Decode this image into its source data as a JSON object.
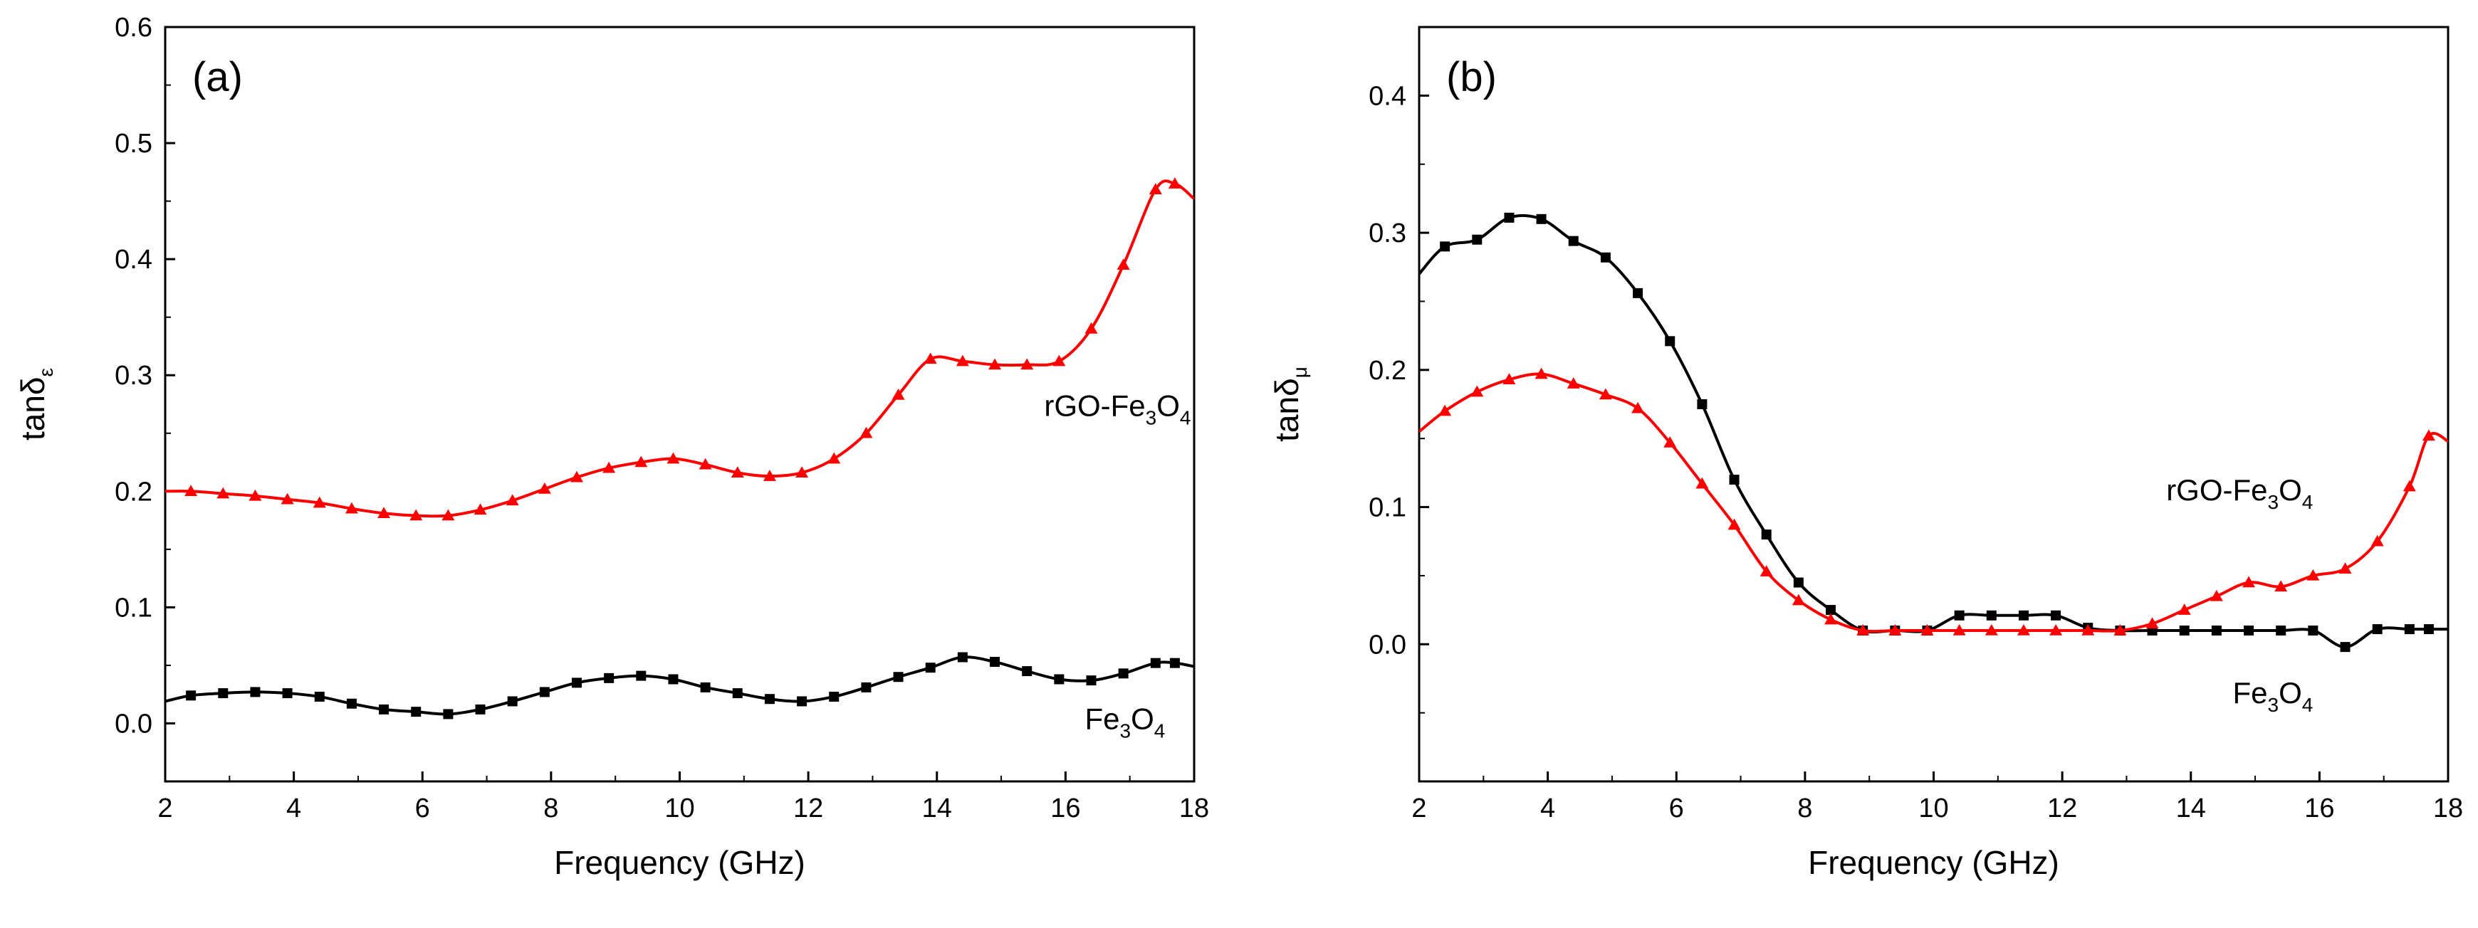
{
  "chart_data": [
    {
      "type": "line",
      "panel_label": "(a)",
      "xlabel": "Frequency (GHz)",
      "ylabel": "tanδ",
      "ylabel_sub": "ε",
      "xlim": [
        2,
        18
      ],
      "ylim": [
        -0.05,
        0.6
      ],
      "xticks": [
        "2",
        "4",
        "6",
        "8",
        "10",
        "12",
        "14",
        "16",
        "18"
      ],
      "yticks": [
        "0.0",
        "0.1",
        "0.2",
        "0.3",
        "0.4",
        "0.5",
        "0.6"
      ],
      "grid": false,
      "series": [
        {
          "name": "rGO-Fe3O4",
          "color": "#ff0000",
          "marker": "triangle",
          "x": [
            2.0,
            2.4,
            2.9,
            3.4,
            3.9,
            4.4,
            4.9,
            5.4,
            5.9,
            6.4,
            6.9,
            7.4,
            7.9,
            8.4,
            8.9,
            9.4,
            9.9,
            10.4,
            10.9,
            11.4,
            11.9,
            12.4,
            12.9,
            13.4,
            13.9,
            14.4,
            14.9,
            15.4,
            15.9,
            16.4,
            16.9,
            17.4,
            17.7,
            18.0
          ],
          "y": [
            0.2,
            0.2,
            0.198,
            0.196,
            0.193,
            0.19,
            0.185,
            0.181,
            0.179,
            0.179,
            0.184,
            0.192,
            0.202,
            0.212,
            0.22,
            0.225,
            0.228,
            0.223,
            0.216,
            0.213,
            0.216,
            0.228,
            0.25,
            0.283,
            0.314,
            0.312,
            0.309,
            0.309,
            0.312,
            0.34,
            0.395,
            0.46,
            0.465,
            0.452
          ]
        },
        {
          "name": "Fe3O4",
          "color": "#000000",
          "marker": "square",
          "x": [
            2.0,
            2.4,
            2.9,
            3.4,
            3.9,
            4.4,
            4.9,
            5.4,
            5.9,
            6.4,
            6.9,
            7.4,
            7.9,
            8.4,
            8.9,
            9.4,
            9.9,
            10.4,
            10.9,
            11.4,
            11.9,
            12.4,
            12.9,
            13.4,
            13.9,
            14.4,
            14.9,
            15.4,
            15.9,
            16.4,
            16.9,
            17.4,
            17.7,
            18.0
          ],
          "y": [
            0.019,
            0.024,
            0.026,
            0.027,
            0.026,
            0.023,
            0.017,
            0.012,
            0.01,
            0.008,
            0.012,
            0.019,
            0.027,
            0.035,
            0.039,
            0.041,
            0.038,
            0.031,
            0.026,
            0.021,
            0.019,
            0.023,
            0.031,
            0.04,
            0.048,
            0.057,
            0.053,
            0.045,
            0.038,
            0.037,
            0.043,
            0.052,
            0.052,
            0.049
          ]
        }
      ],
      "annotations": [
        {
          "base": "rGO-Fe",
          "sub1": "3",
          "mid": "O",
          "sub2": "4",
          "x": 17.95,
          "y": 0.265,
          "anchor": "end"
        },
        {
          "base": "Fe",
          "sub1": "3",
          "mid": "O",
          "sub2": "4",
          "x": 17.55,
          "y": -0.005,
          "anchor": "end"
        }
      ]
    },
    {
      "type": "line",
      "panel_label": "(b)",
      "xlabel": "Frequency (GHz)",
      "ylabel": "tanδ",
      "ylabel_sub": "μ",
      "xlim": [
        2,
        18
      ],
      "ylim": [
        -0.1,
        0.45
      ],
      "xticks": [
        "2",
        "4",
        "6",
        "8",
        "10",
        "12",
        "14",
        "16",
        "18"
      ],
      "yticks": [
        "0.0",
        "0.1",
        "0.2",
        "0.3",
        "0.4"
      ],
      "grid": false,
      "series": [
        {
          "name": "Fe3O4",
          "color": "#000000",
          "marker": "square",
          "x": [
            2.0,
            2.4,
            2.9,
            3.4,
            3.9,
            4.4,
            4.9,
            5.4,
            5.9,
            6.4,
            6.9,
            7.4,
            7.9,
            8.4,
            8.9,
            9.4,
            9.9,
            10.4,
            10.9,
            11.4,
            11.9,
            12.4,
            12.9,
            13.4,
            13.9,
            14.4,
            14.9,
            15.4,
            15.9,
            16.4,
            16.9,
            17.4,
            17.7,
            18.0
          ],
          "y": [
            0.27,
            0.29,
            0.295,
            0.311,
            0.31,
            0.294,
            0.282,
            0.256,
            0.221,
            0.175,
            0.12,
            0.08,
            0.045,
            0.025,
            0.01,
            0.01,
            0.01,
            0.021,
            0.021,
            0.021,
            0.021,
            0.012,
            0.01,
            0.01,
            0.01,
            0.01,
            0.01,
            0.01,
            0.01,
            -0.002,
            0.011,
            0.011,
            0.011,
            0.011
          ]
        },
        {
          "name": "rGO-Fe3O4",
          "color": "#ff0000",
          "marker": "triangle",
          "x": [
            2.0,
            2.4,
            2.9,
            3.4,
            3.9,
            4.4,
            4.9,
            5.4,
            5.9,
            6.4,
            6.9,
            7.4,
            7.9,
            8.4,
            8.9,
            9.4,
            9.9,
            10.4,
            10.9,
            11.4,
            11.9,
            12.4,
            12.9,
            13.4,
            13.9,
            14.4,
            14.9,
            15.4,
            15.9,
            16.4,
            16.9,
            17.4,
            17.7,
            18.0
          ],
          "y": [
            0.155,
            0.17,
            0.184,
            0.193,
            0.197,
            0.19,
            0.182,
            0.172,
            0.147,
            0.117,
            0.087,
            0.053,
            0.032,
            0.018,
            0.01,
            0.01,
            0.01,
            0.01,
            0.01,
            0.01,
            0.01,
            0.01,
            0.01,
            0.015,
            0.025,
            0.035,
            0.045,
            0.042,
            0.05,
            0.055,
            0.075,
            0.115,
            0.152,
            0.148
          ]
        }
      ],
      "annotations": [
        {
          "base": "rGO-Fe",
          "sub1": "3",
          "mid": "O",
          "sub2": "4",
          "x": 15.9,
          "y": 0.105,
          "anchor": "end"
        },
        {
          "base": "Fe",
          "sub1": "3",
          "mid": "O",
          "sub2": "4",
          "x": 15.9,
          "y": -0.043,
          "anchor": "end"
        }
      ]
    }
  ]
}
